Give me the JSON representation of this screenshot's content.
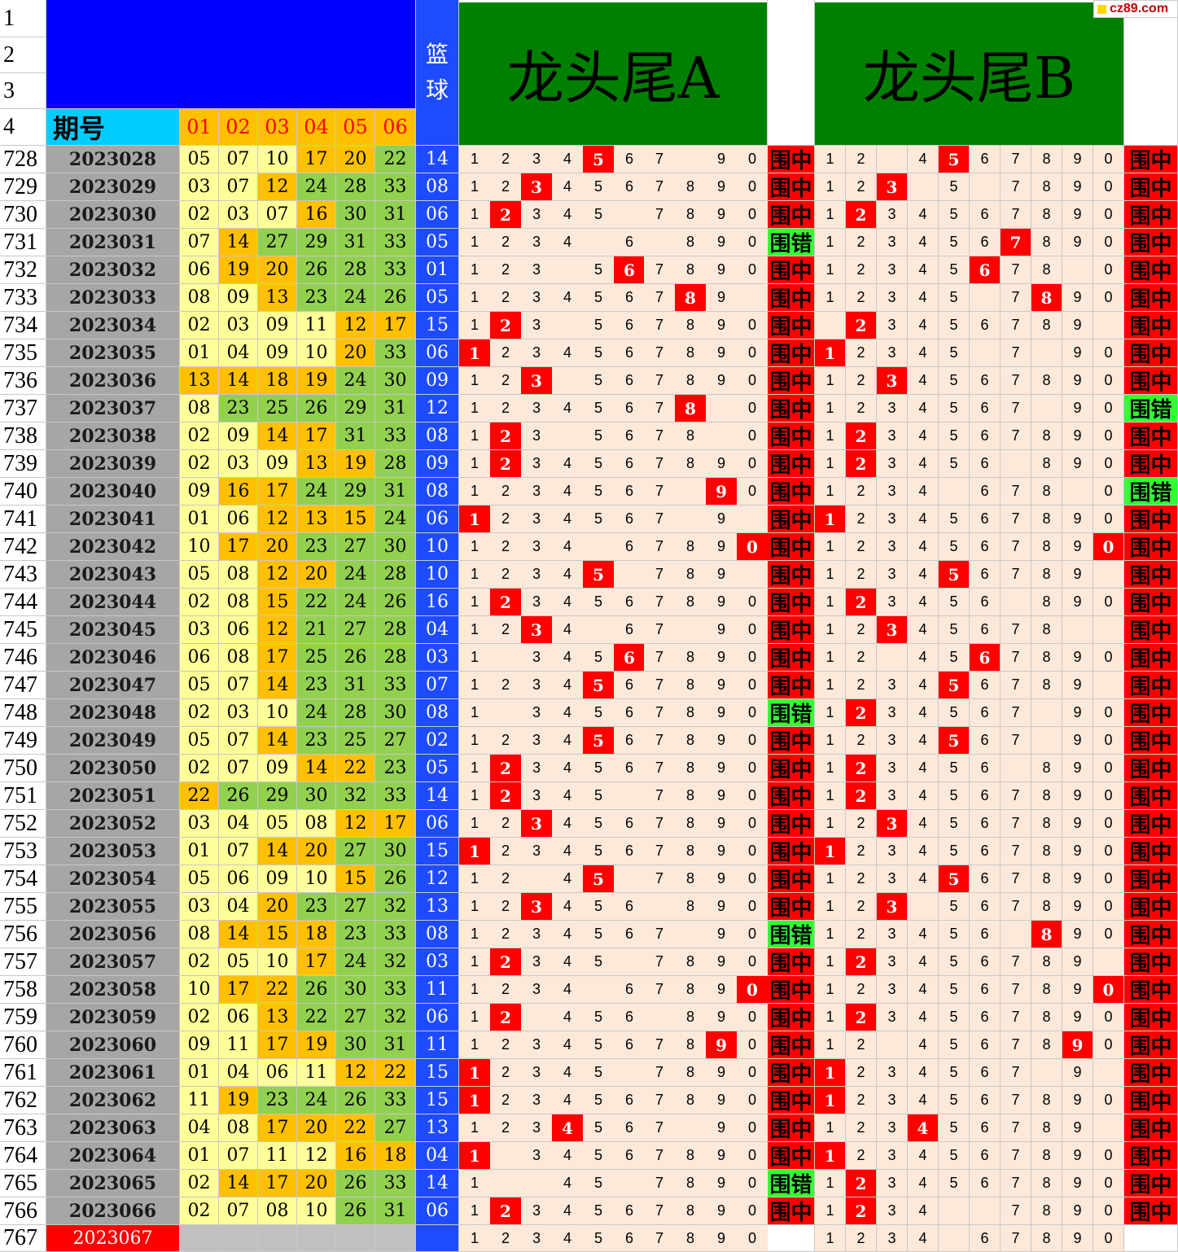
{
  "watermark": "cz89.com",
  "header": {
    "row_labels": [
      "1",
      "2",
      "3",
      "4"
    ],
    "issue_label": "期号",
    "ball_cols": [
      "01",
      "02",
      "03",
      "04",
      "05",
      "06"
    ],
    "basketball_label": [
      "篮",
      "球"
    ],
    "title_a": "龙头尾A",
    "title_b": "龙头尾B"
  },
  "digits": [
    "1",
    "2",
    "3",
    "4",
    "5",
    "6",
    "7",
    "8",
    "9",
    "0"
  ],
  "result_labels": {
    "hit": "围中",
    "miss": "围错"
  },
  "colors": {
    "yellow": "#ffff99",
    "orange": "#ffc000",
    "green": "#92d050",
    "blue": "#1f4bff",
    "header_green": "#008000",
    "red": "#ff0000",
    "pink": "#fde9d9",
    "miss_green": "#33ff33"
  },
  "rows": [
    {
      "n": "728",
      "p": "2023028",
      "b": [
        "05",
        "07",
        "10",
        "17",
        "20",
        "22"
      ],
      "bc": "yyyoog",
      "bb": "14",
      "a": "1234567_90",
      "ah": 5,
      "ar": "h",
      "bp": "12_4567890_",
      "bh": 5,
      "br": "h"
    },
    {
      "n": "729",
      "p": "2023029",
      "b": [
        "03",
        "07",
        "12",
        "24",
        "28",
        "33"
      ],
      "bc": "yyoggg",
      "bb": "08",
      "a": "1234567890",
      "ah": 3,
      "ar": "h",
      "bp": "123_5_7890",
      "bh": 3,
      "br": "h"
    },
    {
      "n": "730",
      "p": "2023030",
      "b": [
        "02",
        "03",
        "07",
        "16",
        "30",
        "31"
      ],
      "bc": "yyyogg",
      "bb": "06",
      "a": "12345_7890",
      "ah": 2,
      "ar": "h",
      "bp": "1234567890",
      "bh": 2,
      "br": "h"
    },
    {
      "n": "731",
      "p": "2023031",
      "b": [
        "07",
        "14",
        "27",
        "29",
        "31",
        "33"
      ],
      "bc": "yogggg",
      "bb": "05",
      "a": "1234_6_890",
      "ah": 0,
      "ar": "m",
      "bp": "1234567890",
      "bh": 7,
      "br": "h"
    },
    {
      "n": "732",
      "p": "2023032",
      "b": [
        "06",
        "19",
        "20",
        "26",
        "28",
        "33"
      ],
      "bc": "yooggg",
      "bb": "01",
      "a": "123_567890",
      "ah": 6,
      "ar": "h",
      "bp": "12345678_0",
      "bh": 6,
      "br": "h"
    },
    {
      "n": "733",
      "p": "2023033",
      "b": [
        "08",
        "09",
        "13",
        "23",
        "24",
        "26"
      ],
      "bc": "yyoggg",
      "bb": "05",
      "a": "123456789_",
      "ah": 8,
      "ar": "h",
      "bp": "12345_7890",
      "bh": 8,
      "br": "h"
    },
    {
      "n": "734",
      "p": "2023034",
      "b": [
        "02",
        "03",
        "09",
        "11",
        "12",
        "17"
      ],
      "bc": "yyyyoo",
      "bb": "15",
      "a": "123_567890",
      "ah": 2,
      "ar": "h",
      "bp": "_23456789_",
      "bh": 2,
      "br": "h"
    },
    {
      "n": "735",
      "p": "2023035",
      "b": [
        "01",
        "04",
        "09",
        "10",
        "20",
        "33"
      ],
      "bc": "yyyyog",
      "bb": "06",
      "a": "1234567890",
      "ah": 1,
      "ar": "h",
      "bp": "12345_7_90",
      "bh": 1,
      "br": "h"
    },
    {
      "n": "736",
      "p": "2023036",
      "b": [
        "13",
        "14",
        "18",
        "19",
        "24",
        "30"
      ],
      "bc": "oooogg",
      "bb": "09",
      "a": "123_567890",
      "ah": 3,
      "ar": "h",
      "bp": "1234567890",
      "bh": 3,
      "br": "h"
    },
    {
      "n": "737",
      "p": "2023037",
      "b": [
        "08",
        "23",
        "25",
        "26",
        "29",
        "31"
      ],
      "bc": "yggggg",
      "bb": "12",
      "a": "12345678_0",
      "ah": 8,
      "ar": "h",
      "bp": "1234567_90",
      "bh": 0,
      "br": "m"
    },
    {
      "n": "738",
      "p": "2023038",
      "b": [
        "02",
        "09",
        "14",
        "17",
        "31",
        "33"
      ],
      "bc": "yyoogg",
      "bb": "08",
      "a": "123_5678_0",
      "ah": 2,
      "ar": "h",
      "bp": "1234567890",
      "bh": 2,
      "br": "h"
    },
    {
      "n": "739",
      "p": "2023039",
      "b": [
        "02",
        "03",
        "09",
        "13",
        "19",
        "28"
      ],
      "bc": "yyyoog",
      "bb": "09",
      "a": "1234567890",
      "ah": 2,
      "ar": "h",
      "bp": "123456_890",
      "bh": 2,
      "br": "h"
    },
    {
      "n": "740",
      "p": "2023040",
      "b": [
        "09",
        "16",
        "17",
        "24",
        "29",
        "31"
      ],
      "bc": "yoogggg",
      "bb": "08",
      "a": "1234567_90",
      "ah": 9,
      "ar": "h",
      "bp": "1234_678_0",
      "bh": 0,
      "br": "m"
    },
    {
      "n": "741",
      "p": "2023041",
      "b": [
        "01",
        "06",
        "12",
        "13",
        "15",
        "24"
      ],
      "bc": "yyooog",
      "bb": "06",
      "a": "1234567_9_",
      "ah": 1,
      "ar": "h",
      "bp": "1234567890",
      "bh": 1,
      "br": "h"
    },
    {
      "n": "742",
      "p": "2023042",
      "b": [
        "10",
        "17",
        "20",
        "23",
        "27",
        "30"
      ],
      "bc": "yooggg",
      "bb": "10",
      "a": "1234_67890",
      "ah": 10,
      "ar": "h",
      "bp": "1234567890",
      "bh": 10,
      "br": "h"
    },
    {
      "n": "743",
      "p": "2023043",
      "b": [
        "05",
        "08",
        "12",
        "20",
        "24",
        "28"
      ],
      "bc": "yyoogg",
      "bb": "10",
      "a": "12345_789_",
      "ah": 5,
      "ar": "h",
      "bp": "123456789_",
      "bh": 5,
      "br": "h"
    },
    {
      "n": "744",
      "p": "2023044",
      "b": [
        "02",
        "08",
        "15",
        "22",
        "24",
        "26"
      ],
      "bc": "yyoggg",
      "bb": "16",
      "a": "1234567890",
      "ah": 2,
      "ar": "h",
      "bp": "123456_890",
      "bh": 2,
      "br": "h"
    },
    {
      "n": "745",
      "p": "2023045",
      "b": [
        "03",
        "06",
        "12",
        "21",
        "27",
        "28"
      ],
      "bc": "yyoggg",
      "bb": "04",
      "a": "1234_67_90",
      "ah": 3,
      "ar": "h",
      "bp": "12345678__",
      "bh": 3,
      "br": "h"
    },
    {
      "n": "746",
      "p": "2023046",
      "b": [
        "06",
        "08",
        "17",
        "25",
        "26",
        "28"
      ],
      "bc": "yyoggg",
      "bb": "03",
      "a": "1_34567890",
      "ah": 6,
      "ar": "h",
      "bp": "12_4567890",
      "bh": 6,
      "br": "h"
    },
    {
      "n": "747",
      "p": "2023047",
      "b": [
        "05",
        "07",
        "14",
        "23",
        "31",
        "33"
      ],
      "bc": "yyoggg",
      "bb": "07",
      "a": "1234567890",
      "ah": 5,
      "ar": "h",
      "bp": "123456789_",
      "bh": 5,
      "br": "h"
    },
    {
      "n": "748",
      "p": "2023048",
      "b": [
        "02",
        "03",
        "10",
        "24",
        "28",
        "30"
      ],
      "bc": "yyyggg",
      "bb": "08",
      "a": "1_34567890",
      "ah": 0,
      "ar": "m",
      "bp": "1234567_90",
      "bh": 2,
      "br": "h"
    },
    {
      "n": "749",
      "p": "2023049",
      "b": [
        "05",
        "07",
        "14",
        "23",
        "25",
        "27"
      ],
      "bc": "yyoggg",
      "bb": "02",
      "a": "1234567890",
      "ah": 5,
      "ar": "h",
      "bp": "1234567_90",
      "bh": 5,
      "br": "h"
    },
    {
      "n": "750",
      "p": "2023050",
      "b": [
        "02",
        "07",
        "09",
        "14",
        "22",
        "23"
      ],
      "bc": "yyyoog",
      "bb": "05",
      "a": "1234567890",
      "ah": 2,
      "ar": "h",
      "bp": "123456_890",
      "bh": 2,
      "br": "h"
    },
    {
      "n": "751",
      "p": "2023051",
      "b": [
        "22",
        "26",
        "29",
        "30",
        "32",
        "33"
      ],
      "bc": "oggggg",
      "bb": "14",
      "a": "12345_7890",
      "ah": 2,
      "ar": "h",
      "bp": "1234567890",
      "bh": 2,
      "br": "h"
    },
    {
      "n": "752",
      "p": "2023052",
      "b": [
        "03",
        "04",
        "05",
        "08",
        "12",
        "17"
      ],
      "bc": "yyyyoo",
      "bb": "06",
      "a": "1234567890",
      "ah": 3,
      "ar": "h",
      "bp": "1234567890",
      "bh": 3,
      "br": "h"
    },
    {
      "n": "753",
      "p": "2023053",
      "b": [
        "01",
        "07",
        "14",
        "20",
        "27",
        "30"
      ],
      "bc": "yyoogg",
      "bb": "15",
      "a": "1234567890",
      "ah": 1,
      "ar": "h",
      "bp": "1234567890",
      "bh": 1,
      "br": "h"
    },
    {
      "n": "754",
      "p": "2023054",
      "b": [
        "05",
        "06",
        "09",
        "10",
        "15",
        "26"
      ],
      "bc": "yyyyog",
      "bb": "12",
      "a": "12_45_7890",
      "ah": 5,
      "ar": "h",
      "bp": "1234567890",
      "bh": 5,
      "br": "h"
    },
    {
      "n": "755",
      "p": "2023055",
      "b": [
        "03",
        "04",
        "20",
        "23",
        "27",
        "32"
      ],
      "bc": "yyoggg",
      "bb": "13",
      "a": "123456_890",
      "ah": 3,
      "ar": "h",
      "bp": "123_567890",
      "bh": 3,
      "br": "h"
    },
    {
      "n": "756",
      "p": "2023056",
      "b": [
        "08",
        "14",
        "15",
        "18",
        "23",
        "33"
      ],
      "bc": "yooogg",
      "bb": "08",
      "a": "1234567_90",
      "ah": 0,
      "ar": "m",
      "bp": "123456_890",
      "bh": 8,
      "br": "h"
    },
    {
      "n": "757",
      "p": "2023057",
      "b": [
        "02",
        "05",
        "10",
        "17",
        "24",
        "32"
      ],
      "bc": "yyyogg",
      "bb": "03",
      "a": "12345_7890",
      "ah": 2,
      "ar": "h",
      "bp": "123456789_",
      "bh": 2,
      "br": "h"
    },
    {
      "n": "758",
      "p": "2023058",
      "b": [
        "10",
        "17",
        "22",
        "26",
        "30",
        "33"
      ],
      "bc": "yooggg",
      "bb": "11",
      "a": "1234_67890",
      "ah": 10,
      "ar": "h",
      "bp": "1234567890",
      "bh": 10,
      "br": "h"
    },
    {
      "n": "759",
      "p": "2023059",
      "b": [
        "02",
        "06",
        "13",
        "22",
        "27",
        "32"
      ],
      "bc": "yyoggg",
      "bb": "06",
      "a": "12_456_890",
      "ah": 2,
      "ar": "h",
      "bp": "1234567890",
      "bh": 2,
      "br": "h"
    },
    {
      "n": "760",
      "p": "2023060",
      "b": [
        "09",
        "11",
        "17",
        "19",
        "30",
        "31"
      ],
      "bc": "yyoogg",
      "bb": "11",
      "a": "1234567890",
      "ah": 9,
      "ar": "h",
      "bp": "12_4567890",
      "bh": 9,
      "br": "h"
    },
    {
      "n": "761",
      "p": "2023061",
      "b": [
        "01",
        "04",
        "06",
        "11",
        "12",
        "22"
      ],
      "bc": "yyyyoo",
      "bb": "15",
      "a": "12345_7890",
      "ah": 1,
      "ar": "h",
      "bp": "1234567_9_",
      "bh": 1,
      "br": "h"
    },
    {
      "n": "762",
      "p": "2023062",
      "b": [
        "11",
        "19",
        "23",
        "24",
        "26",
        "33"
      ],
      "bc": "yogggg",
      "bb": "15",
      "a": "1234567890",
      "ah": 1,
      "ar": "h",
      "bp": "1234567890",
      "bh": 1,
      "br": "h"
    },
    {
      "n": "763",
      "p": "2023063",
      "b": [
        "04",
        "08",
        "17",
        "20",
        "22",
        "27"
      ],
      "bc": "yyooog",
      "bb": "13",
      "a": "1234567_90",
      "ah": 4,
      "ar": "h",
      "bp": "123456789_",
      "bh": 4,
      "br": "h"
    },
    {
      "n": "764",
      "p": "2023064",
      "b": [
        "01",
        "07",
        "11",
        "12",
        "16",
        "18"
      ],
      "bc": "yyyyoo",
      "bb": "04",
      "a": "1_34567890",
      "ah": 1,
      "ar": "h",
      "bp": "1234567890",
      "bh": 1,
      "br": "h"
    },
    {
      "n": "765",
      "p": "2023065",
      "b": [
        "02",
        "14",
        "17",
        "20",
        "26",
        "33"
      ],
      "bc": "yooogg",
      "bb": "14",
      "a": "1__45_7890",
      "ah": 0,
      "ar": "m",
      "bp": "1234567890",
      "bh": 2,
      "br": "h"
    },
    {
      "n": "766",
      "p": "2023066",
      "b": [
        "02",
        "07",
        "08",
        "10",
        "26",
        "31"
      ],
      "bc": "yyyygg",
      "bb": "06",
      "a": "1234567890",
      "ah": 2,
      "ar": "h",
      "bp": "1234__7890",
      "bh": 2,
      "br": "h"
    },
    {
      "n": "767",
      "p": "2023067",
      "b": [
        "",
        "",
        "",
        "",
        "",
        ""
      ],
      "bc": "nnnnnn",
      "bb": "",
      "a": "1234567890",
      "ah": 0,
      "ar": "e",
      "bp": "1234_67890",
      "bh": 0,
      "br": "e",
      "next": true
    }
  ]
}
